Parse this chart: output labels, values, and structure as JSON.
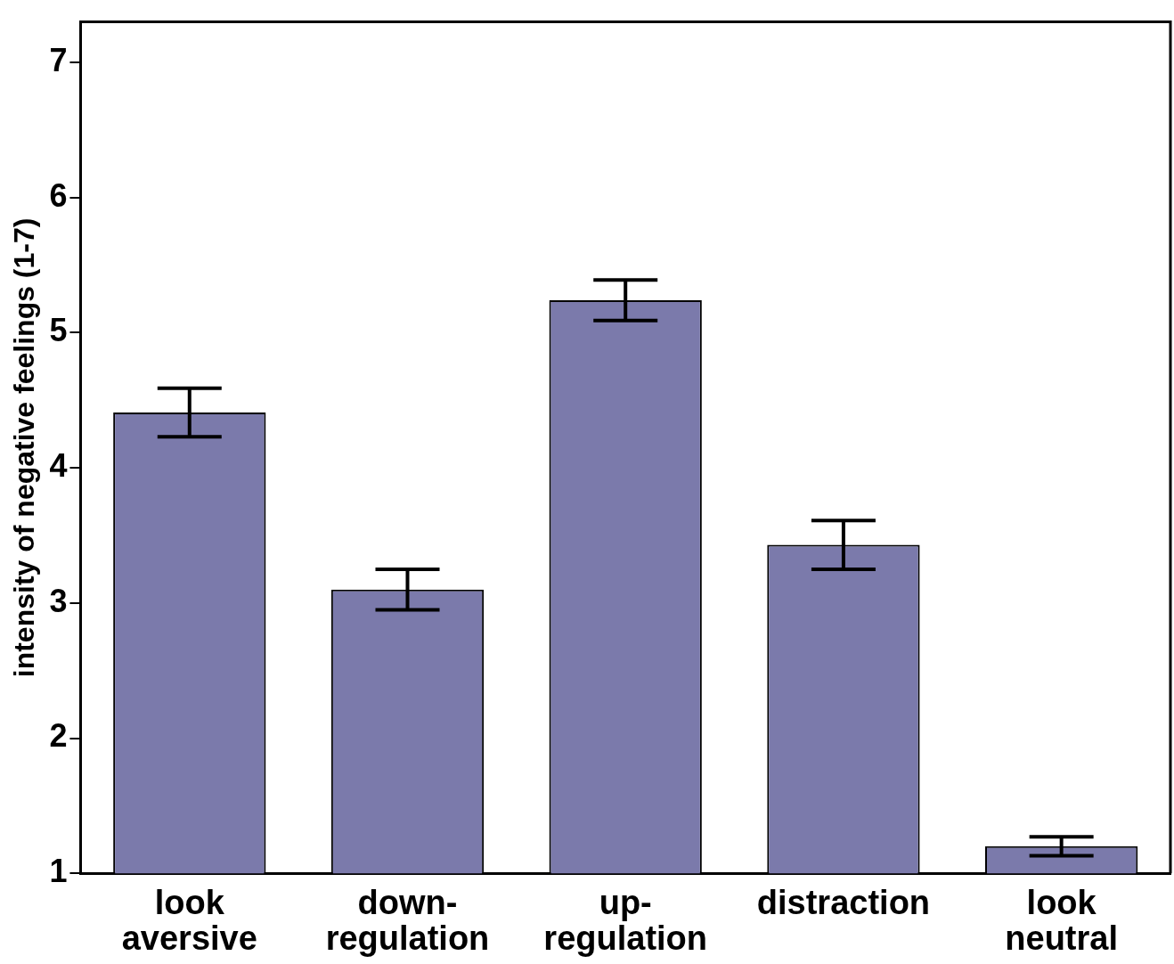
{
  "chart_data": {
    "type": "bar",
    "ylabel": "intensity of negative feelings (1-7)",
    "categories": [
      "look\naversive",
      "down-\nregulation",
      "up-\nregulation",
      "distraction",
      "look\nneutral"
    ],
    "values": [
      4.41,
      3.1,
      5.24,
      3.43,
      1.2
    ],
    "errors": [
      0.18,
      0.15,
      0.15,
      0.18,
      0.07
    ],
    "color": "#7b7aab",
    "ylim": [
      1,
      7.3
    ],
    "yticks": [
      1,
      2,
      3,
      4,
      5,
      6,
      7
    ],
    "grid": false,
    "legend": false
  }
}
